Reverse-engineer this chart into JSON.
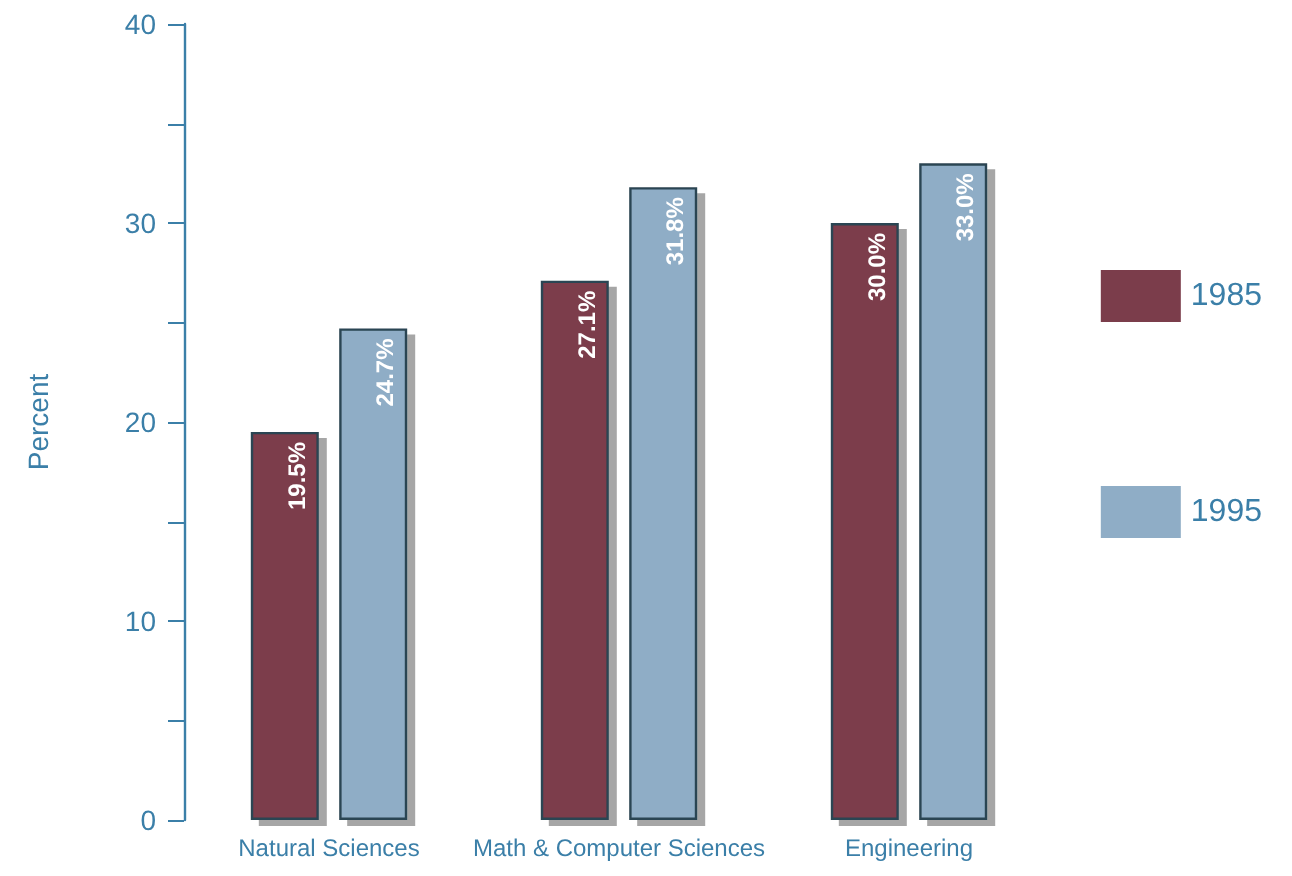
{
  "chart_data": {
    "type": "bar",
    "ylabel": "Percent",
    "categories": [
      "Natural Sciences",
      "Math & Computer Sciences",
      "Engineering"
    ],
    "series": [
      {
        "name": "1985",
        "color": "#7b3d4b",
        "values": [
          19.5,
          27.1,
          30.0
        ],
        "value_labels": [
          "19.5%",
          "27.1%",
          "30.0%"
        ]
      },
      {
        "name": "1995",
        "color": "#8fadc6",
        "values": [
          24.7,
          31.8,
          33.0
        ],
        "value_labels": [
          "24.7%",
          "31.8%",
          "33.0%"
        ]
      }
    ],
    "ylim": [
      0,
      40
    ],
    "yticks": [
      0,
      {
        "value": 5,
        "label": null
      },
      10,
      {
        "value": 15,
        "label": null
      },
      20,
      {
        "value": 25,
        "label": null
      },
      30,
      {
        "value": 35,
        "label": null
      },
      40
    ],
    "grid": false,
    "legend": "right"
  }
}
